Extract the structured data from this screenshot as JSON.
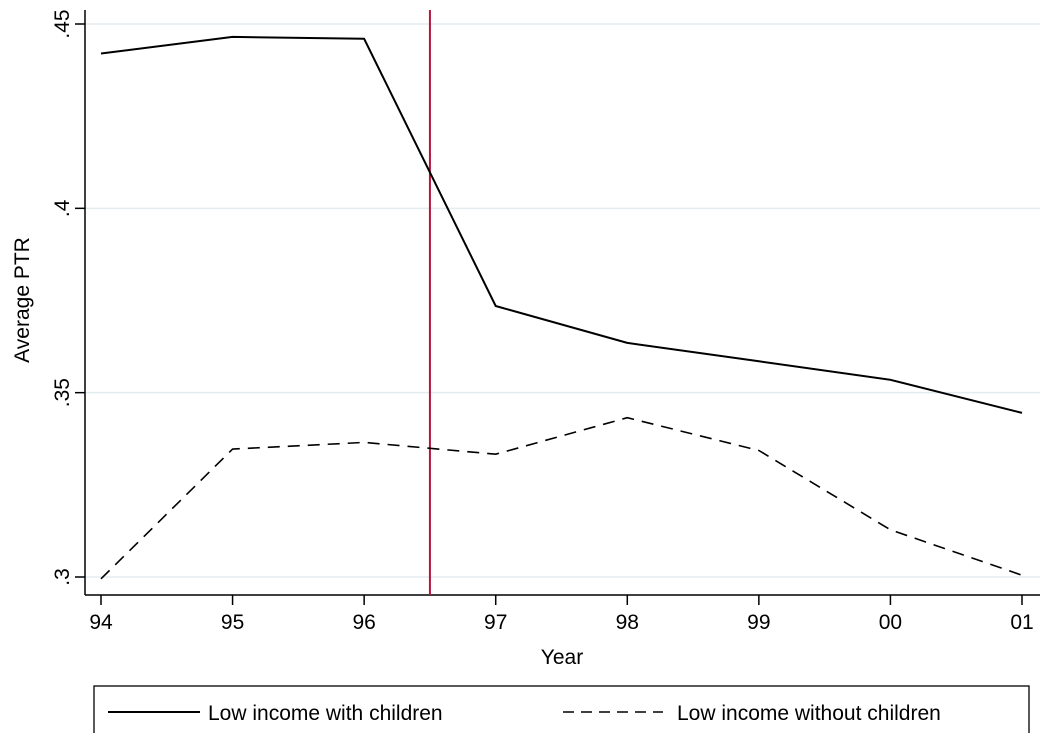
{
  "chart_data": {
    "type": "line",
    "xlabel": "Year",
    "ylabel": "Average PTR",
    "categories": [
      "94",
      "95",
      "96",
      "97",
      "98",
      "99",
      "00",
      "01"
    ],
    "ylim": [
      0.3,
      0.45
    ],
    "yticks": [
      0.3,
      0.35,
      0.4,
      0.45
    ],
    "ytick_labels": [
      ".3",
      ".35",
      ".4",
      ".45"
    ],
    "grid": true,
    "series": [
      {
        "name": "Low income with children",
        "line_style": "solid",
        "color": "#000000",
        "values": [
          0.442,
          0.4465,
          0.446,
          0.3735,
          0.3635,
          0.3585,
          0.3535,
          0.3445
        ]
      },
      {
        "name": "Low income without children",
        "line_style": "dashed",
        "color": "#000000",
        "values": [
          0.2995,
          0.3347,
          0.3365,
          0.3333,
          0.3432,
          0.3343,
          0.3128,
          0.3005
        ]
      }
    ],
    "reference_line": {
      "x": 96.5,
      "color": "#b5163f"
    },
    "legend_position": "bottom"
  }
}
